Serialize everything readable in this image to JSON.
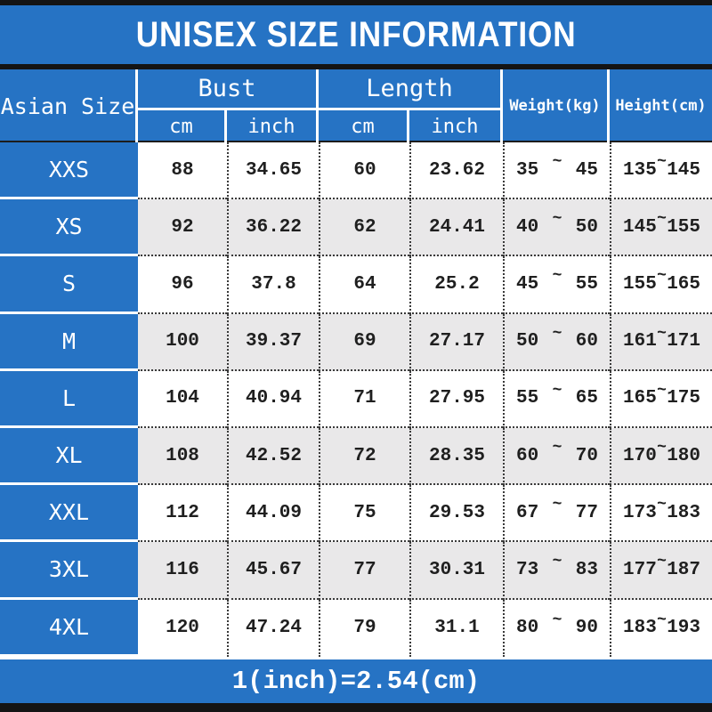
{
  "title": "UNISEX SIZE INFORMATION",
  "tilde": "~",
  "header": {
    "size_col": "Asian Size",
    "bust": "Bust",
    "length": "Length",
    "weight": "Weight(kg)",
    "height": "Height(cm)",
    "cm": "cm",
    "inch": "inch"
  },
  "rows": [
    {
      "size": "XXS",
      "bust_cm": "88",
      "bust_inch": "34.65",
      "length_cm": "60",
      "length_inch": "23.62",
      "weight_min": "35",
      "weight_max": "45",
      "height_min": "135",
      "height_max": "145"
    },
    {
      "size": "XS",
      "bust_cm": "92",
      "bust_inch": "36.22",
      "length_cm": "62",
      "length_inch": "24.41",
      "weight_min": "40",
      "weight_max": "50",
      "height_min": "145",
      "height_max": "155"
    },
    {
      "size": "S",
      "bust_cm": "96",
      "bust_inch": "37.8",
      "length_cm": "64",
      "length_inch": "25.2",
      "weight_min": "45",
      "weight_max": "55",
      "height_min": "155",
      "height_max": "165"
    },
    {
      "size": "M",
      "bust_cm": "100",
      "bust_inch": "39.37",
      "length_cm": "69",
      "length_inch": "27.17",
      "weight_min": "50",
      "weight_max": "60",
      "height_min": "161",
      "height_max": "171"
    },
    {
      "size": "L",
      "bust_cm": "104",
      "bust_inch": "40.94",
      "length_cm": "71",
      "length_inch": "27.95",
      "weight_min": "55",
      "weight_max": "65",
      "height_min": "165",
      "height_max": "175"
    },
    {
      "size": "XL",
      "bust_cm": "108",
      "bust_inch": "42.52",
      "length_cm": "72",
      "length_inch": "28.35",
      "weight_min": "60",
      "weight_max": "70",
      "height_min": "170",
      "height_max": "180"
    },
    {
      "size": "XXL",
      "bust_cm": "112",
      "bust_inch": "44.09",
      "length_cm": "75",
      "length_inch": "29.53",
      "weight_min": "67",
      "weight_max": "77",
      "height_min": "173",
      "height_max": "183"
    },
    {
      "size": "3XL",
      "bust_cm": "116",
      "bust_inch": "45.67",
      "length_cm": "77",
      "length_inch": "30.31",
      "weight_min": "73",
      "weight_max": "83",
      "height_min": "177",
      "height_max": "187"
    },
    {
      "size": "4XL",
      "bust_cm": "120",
      "bust_inch": "47.24",
      "length_cm": "79",
      "length_inch": "31.1",
      "weight_min": "80",
      "weight_max": "90",
      "height_min": "183",
      "height_max": "193"
    }
  ],
  "footer": "1(inch)=2.54(cm)"
}
